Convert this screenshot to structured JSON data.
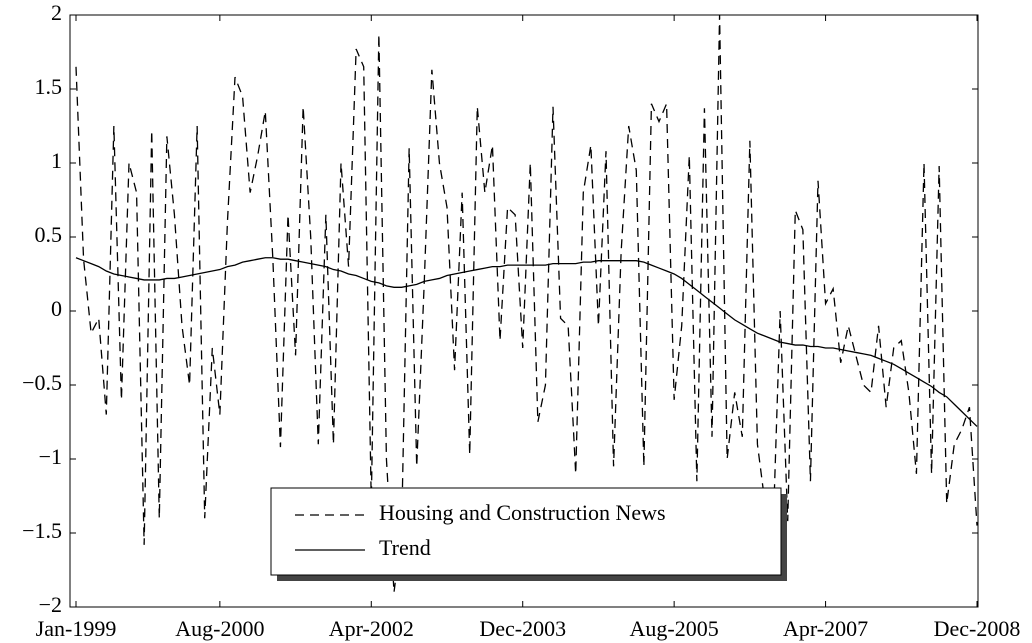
{
  "chart_data": {
    "type": "line",
    "categories": [
      "Jan-1999",
      null,
      null,
      null,
      null,
      null,
      null,
      null,
      null,
      null,
      null,
      null,
      null,
      null,
      null,
      null,
      null,
      null,
      null,
      "Aug-2000",
      null,
      null,
      null,
      null,
      null,
      null,
      null,
      null,
      null,
      null,
      null,
      null,
      null,
      null,
      null,
      null,
      null,
      null,
      null,
      "Apr-2002",
      null,
      null,
      null,
      null,
      null,
      null,
      null,
      null,
      null,
      null,
      null,
      null,
      null,
      null,
      null,
      null,
      null,
      null,
      null,
      "Dec-2003",
      null,
      null,
      null,
      null,
      null,
      null,
      null,
      null,
      null,
      null,
      null,
      null,
      null,
      null,
      null,
      null,
      null,
      null,
      null,
      "Aug-2005",
      null,
      null,
      null,
      null,
      null,
      null,
      null,
      null,
      null,
      null,
      null,
      null,
      null,
      null,
      null,
      null,
      null,
      null,
      null,
      "Apr-2007",
      null,
      null,
      null,
      null,
      null,
      null,
      null,
      null,
      null,
      null,
      null,
      null,
      null,
      null,
      null,
      null,
      null,
      null,
      null,
      "Dec-2008"
    ],
    "series": [
      {
        "name": "Housing and Construction News",
        "color": "#000000",
        "dash": "dashed",
        "values": [
          1.65,
          0.35,
          -0.15,
          -0.05,
          -0.7,
          1.25,
          -0.6,
          1.0,
          0.8,
          -1.58,
          1.22,
          -1.4,
          1.18,
          0.65,
          -0.1,
          -0.5,
          1.25,
          -1.4,
          -0.25,
          -0.7,
          0.6,
          1.58,
          1.45,
          0.8,
          1.05,
          1.35,
          0.35,
          -0.92,
          0.65,
          -0.3,
          1.38,
          0.5,
          -0.9,
          0.65,
          -0.9,
          1.0,
          0.3,
          1.77,
          1.65,
          -1.3,
          1.87,
          -1.0,
          -1.9,
          -1.5,
          1.1,
          -1.05,
          0.2,
          1.63,
          1.0,
          0.7,
          -0.4,
          0.8,
          -0.97,
          1.38,
          0.8,
          1.12,
          -0.2,
          0.7,
          0.65,
          -0.25,
          1.0,
          -0.75,
          -0.5,
          1.38,
          -0.05,
          -0.1,
          -1.1,
          0.8,
          1.12,
          -0.1,
          1.08,
          -1.05,
          0.4,
          1.25,
          0.95,
          -1.05,
          1.4,
          1.28,
          1.4,
          -0.6,
          -0.1,
          1.05,
          -1.15,
          1.37,
          -0.85,
          2.0,
          -1.0,
          -0.55,
          -0.85,
          1.15,
          -0.9,
          -1.3,
          -1.6,
          0.0,
          -1.42,
          0.68,
          0.55,
          -1.15,
          0.88,
          0.05,
          0.15,
          -0.35,
          -0.1,
          -0.3,
          -0.5,
          -0.55,
          -0.1,
          -0.65,
          -0.25,
          -0.2,
          -0.55,
          -1.1,
          1.0,
          -1.1,
          0.98,
          -1.3,
          -0.9,
          -0.8,
          -0.65,
          -1.45
        ]
      },
      {
        "name": "Trend",
        "color": "#000000",
        "dash": "solid",
        "values": [
          0.36,
          0.34,
          0.32,
          0.3,
          0.27,
          0.25,
          0.24,
          0.23,
          0.22,
          0.21,
          0.21,
          0.21,
          0.22,
          0.22,
          0.23,
          0.24,
          0.25,
          0.26,
          0.27,
          0.28,
          0.3,
          0.31,
          0.33,
          0.34,
          0.35,
          0.36,
          0.36,
          0.35,
          0.35,
          0.34,
          0.33,
          0.32,
          0.31,
          0.3,
          0.28,
          0.27,
          0.25,
          0.24,
          0.22,
          0.2,
          0.19,
          0.17,
          0.16,
          0.16,
          0.17,
          0.18,
          0.2,
          0.21,
          0.22,
          0.24,
          0.25,
          0.26,
          0.27,
          0.28,
          0.29,
          0.3,
          0.3,
          0.31,
          0.31,
          0.31,
          0.31,
          0.31,
          0.31,
          0.32,
          0.32,
          0.32,
          0.32,
          0.33,
          0.33,
          0.34,
          0.34,
          0.34,
          0.34,
          0.34,
          0.34,
          0.33,
          0.31,
          0.29,
          0.27,
          0.25,
          0.22,
          0.18,
          0.14,
          0.1,
          0.06,
          0.02,
          -0.02,
          -0.06,
          -0.09,
          -0.12,
          -0.15,
          -0.17,
          -0.19,
          -0.21,
          -0.22,
          -0.23,
          -0.23,
          -0.24,
          -0.24,
          -0.25,
          -0.25,
          -0.26,
          -0.27,
          -0.28,
          -0.29,
          -0.3,
          -0.32,
          -0.34,
          -0.36,
          -0.39,
          -0.42,
          -0.45,
          -0.48,
          -0.51,
          -0.55,
          -0.58,
          -0.63,
          -0.68,
          -0.73,
          -0.78
        ]
      }
    ],
    "ylim": [
      -2,
      2
    ],
    "yticks": [
      {
        "value": -2,
        "label": "−2"
      },
      {
        "value": -1.5,
        "label": "−1.5"
      },
      {
        "value": -1,
        "label": "−1"
      },
      {
        "value": -0.5,
        "label": "−0.5"
      },
      0,
      0.5,
      1,
      1.5,
      2
    ],
    "legend": "lower center"
  }
}
